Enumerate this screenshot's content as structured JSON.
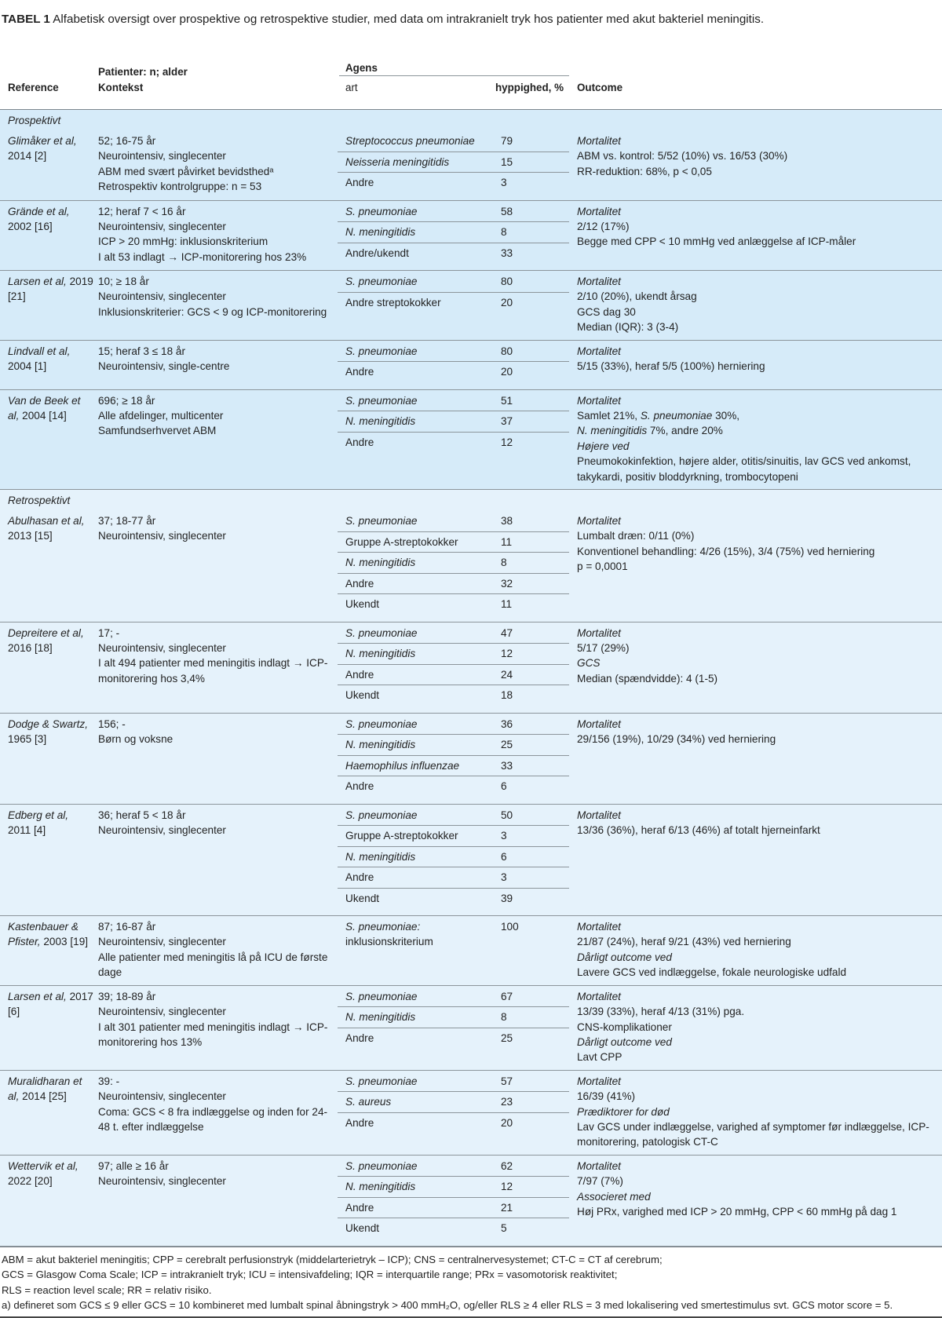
{
  "title": {
    "label": "TABEL 1",
    "text": "Alfabetisk oversigt over prospektive og retrospektive studier, med data om intrakranielt tryk hos patienter med akut bakteriel meningitis."
  },
  "header": {
    "reference": "Reference",
    "patients": "Patienter: n; alder",
    "context": "Kontekst",
    "agens": "Agens",
    "art": "art",
    "frequency": "hyppighed, %",
    "outcome": "Outcome"
  },
  "colors": {
    "prospective_bg": "#d6ebf9",
    "retrospective_bg": "#e5f2fb",
    "divider": "#8c959b"
  },
  "sections": [
    {
      "label": "Prospektivt",
      "kind": "pro",
      "studies": [
        {
          "name": "Glimåker et al,",
          "year": "2014 [2]",
          "context": [
            "52; 16-75 år",
            "Neurointensiv, singlecenter",
            "ABM med svært påvirket bevidsthedᵃ",
            "Retrospektiv kontrolgruppe: n = 53"
          ],
          "agents": [
            {
              "art": "Streptococcus pneumoniae",
              "i": true,
              "freq": "79"
            },
            {
              "art": "Neisseria meningitidis",
              "i": true,
              "freq": "15"
            },
            {
              "art": "Andre",
              "freq": "3"
            }
          ],
          "outcome": [
            {
              "t": "Mortalitet",
              "i": true
            },
            "ABM vs. kontrol: 5/52 (10%) vs. 16/53 (30%)",
            "RR-reduktion: 68%, p < 0,05"
          ]
        },
        {
          "name": "Grände et al,",
          "year": "2002 [16]",
          "context": [
            "12; heraf 7 < 16 år",
            "Neurointensiv, singlecenter",
            "ICP > 20 mmHg: inklusionskriterium",
            "I alt 53 indlagt → ICP-monitorering hos 23%"
          ],
          "agents": [
            {
              "art": "S. pneumoniae",
              "i": true,
              "freq": "58"
            },
            {
              "art": "N. meningitidis",
              "i": true,
              "freq": "8"
            },
            {
              "art": "Andre/ukendt",
              "freq": "33"
            }
          ],
          "outcome": [
            {
              "t": "Mortalitet",
              "i": true
            },
            "2/12 (17%)",
            "Begge med CPP < 10 mmHg ved anlæggelse af ICP-måler"
          ]
        },
        {
          "name": "Larsen et al,",
          "year": "2019 [21]",
          "context": [
            "10; ≥ 18 år",
            "Neurointensiv, singlecenter",
            "Inklusionskriterier: GCS < 9 og ICP-monitorering"
          ],
          "agents": [
            {
              "art": "S. pneumoniae",
              "i": true,
              "freq": "80"
            },
            {
              "art": "Andre streptokokker",
              "freq": "20"
            }
          ],
          "outcome": [
            {
              "t": "Mortalitet",
              "i": true
            },
            "2/10 (20%), ukendt årsag",
            "GCS dag 30",
            "Median (IQR): 3 (3-4)"
          ]
        },
        {
          "name": "Lindvall et al,",
          "year": "2004 [1]",
          "context": [
            "15; heraf 3 ≤ 18 år",
            "Neurointensiv, single-centre"
          ],
          "agents": [
            {
              "art": "S. pneumoniae",
              "i": true,
              "freq": "80"
            },
            {
              "art": "Andre",
              "freq": "20"
            }
          ],
          "outcome": [
            {
              "t": "Mortalitet",
              "i": true
            },
            "5/15 (33%), heraf 5/5 (100%) herniering"
          ]
        },
        {
          "name": "Van de Beek et al,",
          "year": "2004 [14]",
          "context": [
            "696; ≥ 18 år",
            "Alle afdelinger, multicenter",
            "Samfundserhvervet ABM"
          ],
          "agents": [
            {
              "art": "S. pneumoniae",
              "i": true,
              "freq": "51"
            },
            {
              "art": "N. meningitidis",
              "i": true,
              "freq": "37"
            },
            {
              "art": "Andre",
              "freq": "12"
            }
          ],
          "outcome": [
            {
              "t": "Mortalitet",
              "i": true
            },
            [
              {
                "t": "Samlet 21%, "
              },
              {
                "t": "S. pneumoniae",
                "i": true
              },
              {
                "t": " 30%,"
              }
            ],
            [
              {
                "t": "N. meningitidis",
                "i": true
              },
              {
                "t": " 7%, andre 20%"
              }
            ],
            {
              "t": "Højere ved",
              "i": true
            },
            "Pneumokokinfektion, højere alder, otitis/sinuitis, lav GCS ved ankomst, takykardi, positiv bloddyrkning, trombocytopeni"
          ]
        }
      ]
    },
    {
      "label": "Retrospektivt",
      "kind": "ret",
      "studies": [
        {
          "name": "Abulhasan et al,",
          "year": "2013 [15]",
          "context": [
            "37; 18-77 år",
            "Neurointensiv, singlecenter"
          ],
          "agents": [
            {
              "art": "S. pneumoniae",
              "i": true,
              "freq": "38"
            },
            {
              "art": "Gruppe A-streptokokker",
              "freq": "11"
            },
            {
              "art": "N. meningitidis",
              "i": true,
              "freq": "8"
            },
            {
              "art": "Andre",
              "freq": "32"
            },
            {
              "art": "Ukendt",
              "freq": "11"
            }
          ],
          "outcome": [
            {
              "t": "Mortalitet",
              "i": true
            },
            "Lumbalt dræn: 0/11 (0%)",
            "Konventionel behandling: 4/26 (15%), 3/4 (75%) ved herniering",
            "p = 0,0001"
          ]
        },
        {
          "name": "Depreitere et al,",
          "year": "2016 [18]",
          "context": [
            "17; -",
            "Neurointensiv, singlecenter",
            "I alt 494 patienter med meningitis indlagt → ICP-monitorering hos 3,4%"
          ],
          "agents": [
            {
              "art": "S. pneumoniae",
              "i": true,
              "freq": "47"
            },
            {
              "art": "N. meningitidis",
              "i": true,
              "freq": "12"
            },
            {
              "art": "Andre",
              "freq": "24"
            },
            {
              "art": "Ukendt",
              "freq": "18"
            }
          ],
          "outcome": [
            {
              "t": "Mortalitet",
              "i": true
            },
            "5/17 (29%)",
            {
              "t": "GCS",
              "i": true
            },
            "Median (spændvidde): 4 (1-5)"
          ]
        },
        {
          "name": "Dodge & Swartz,",
          "year": "1965 [3]",
          "context": [
            "156; -",
            "Børn og voksne"
          ],
          "agents": [
            {
              "art": "S. pneumoniae",
              "i": true,
              "freq": "36"
            },
            {
              "art": "N. meningitidis",
              "i": true,
              "freq": "25"
            },
            {
              "art": "Haemophilus influenzae",
              "i": true,
              "freq": "33"
            },
            {
              "art": "Andre",
              "freq": "6"
            }
          ],
          "outcome": [
            {
              "t": "Mortalitet",
              "i": true
            },
            "29/156 (19%), 10/29 (34%) ved herniering"
          ]
        },
        {
          "name": "Edberg et al,",
          "year": "2011 [4]",
          "context": [
            "36; heraf 5 < 18 år",
            "Neurointensiv, singlecenter"
          ],
          "agents": [
            {
              "art": "S. pneumoniae",
              "i": true,
              "freq": "50"
            },
            {
              "art": "Gruppe A-streptokokker",
              "freq": "3"
            },
            {
              "art": "N. meningitidis",
              "i": true,
              "freq": "6"
            },
            {
              "art": "Andre",
              "freq": "3"
            },
            {
              "art": "Ukendt",
              "freq": "39"
            }
          ],
          "outcome": [
            {
              "t": "Mortalitet",
              "i": true
            },
            "13/36 (36%), heraf 6/13 (46%) af totalt hjerneinfarkt"
          ]
        },
        {
          "name": "Kastenbauer & Pfister,",
          "year": "2003 [19]",
          "context": [
            "87; 16-87 år",
            "Neurointensiv, singlecenter",
            "Alle patienter med meningitis lå på ICU de første dage"
          ],
          "agents": [
            {
              "art": "S. pneumoniae:",
              "i": true,
              "art2": "inklusionskriterium",
              "freq": "100"
            }
          ],
          "outcome": [
            {
              "t": "Mortalitet",
              "i": true
            },
            "21/87 (24%), heraf 9/21 (43%) ved herniering",
            {
              "t": "Dårligt outcome ved",
              "i": true
            },
            "Lavere GCS ved indlæggelse, fokale neurologiske udfald"
          ]
        },
        {
          "name": "Larsen et al,",
          "year": "2017 [6]",
          "context": [
            "39; 18-89 år",
            "Neurointensiv, singlecenter",
            "I alt 301 patienter med meningitis indlagt → ICP- monitorering hos 13%"
          ],
          "agents": [
            {
              "art": "S. pneumoniae",
              "i": true,
              "freq": "67"
            },
            {
              "art": "N. meningitidis",
              "i": true,
              "freq": "8"
            },
            {
              "art": "Andre",
              "freq": "25"
            }
          ],
          "outcome": [
            {
              "t": "Mortalitet",
              "i": true
            },
            "13/39 (33%), heraf 4/13 (31%) pga.",
            "CNS-komplikationer",
            {
              "t": "Dårligt outcome ved",
              "i": true
            },
            "Lavt CPP"
          ]
        },
        {
          "name": "Muralidharan et al,",
          "year": "2014 [25]",
          "context": [
            "39: -",
            "Neurointensiv, singlecenter",
            "Coma: GCS < 8 fra indlæggelse og inden for 24-48 t. efter indlæggelse"
          ],
          "agents": [
            {
              "art": "S. pneumoniae",
              "i": true,
              "freq": "57"
            },
            {
              "art": "S. aureus",
              "i": true,
              "freq": "23"
            },
            {
              "art": "Andre",
              "freq": "20"
            }
          ],
          "outcome": [
            {
              "t": "Mortalitet",
              "i": true
            },
            "16/39 (41%)",
            {
              "t": "Prædiktorer for død",
              "i": true
            },
            "Lav GCS under indlæggelse, varighed af symptomer før indlæggelse, ICP-monitorering, patologisk CT-C"
          ]
        },
        {
          "name": "Wettervik et al,",
          "year": "2022 [20]",
          "context": [
            "97; alle ≥ 16 år",
            "Neurointensiv, singlecenter"
          ],
          "agents": [
            {
              "art": "S. pneumoniae",
              "i": true,
              "freq": "62"
            },
            {
              "art": "N. meningitidis",
              "i": true,
              "freq": "12"
            },
            {
              "art": "Andre",
              "freq": "21"
            },
            {
              "art": "Ukendt",
              "freq": "5"
            }
          ],
          "outcome": [
            {
              "t": "Mortalitet",
              "i": true
            },
            "7/97 (7%)",
            {
              "t": "Associeret med",
              "i": true
            },
            "Høj PRx, varighed med ICP > 20 mmHg, CPP < 60 mmHg på dag 1"
          ]
        }
      ]
    }
  ],
  "footnotes": [
    "ABM = akut bakteriel meningitis; CPP = cerebralt perfusionstryk (middelarterietryk – ICP); CNS = centralnervesystemet; CT-C = CT af cerebrum;",
    "GCS = Glasgow Coma Scale; ICP = intrakranielt tryk; ICU = intensivafdeling; IQR = interquartile range; PRx = vasomotorisk reaktivitet;",
    "RLS = reaction level scale; RR = relativ risiko.",
    "a) defineret som GCS ≤ 9 eller GCS = 10 kombineret med lumbalt spinal åbningstryk > 400 mmH₂O, og/eller RLS ≥ 4 eller RLS = 3 med lokalisering ved smertestimulus svt. GCS motor score = 5."
  ]
}
